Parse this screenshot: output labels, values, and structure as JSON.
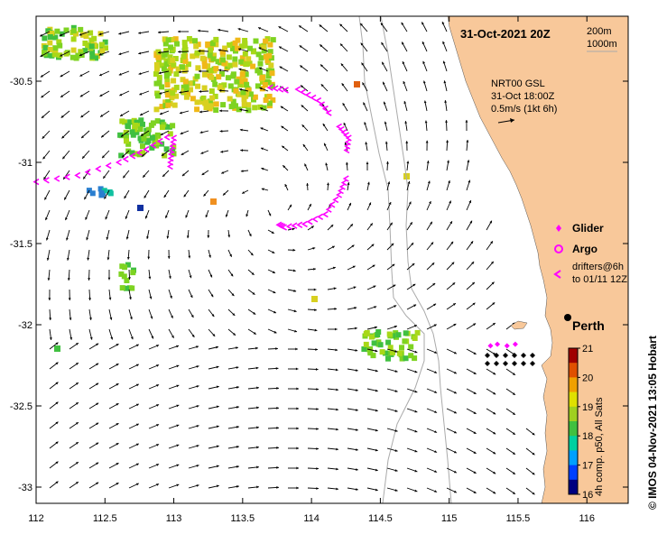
{
  "title": "31-Oct-2021 20Z",
  "contours": [
    "200m",
    "1000m"
  ],
  "current_info": {
    "line1": "NRT00 GSL",
    "line2": "31-Oct 18:00Z",
    "line3": "0.5m/s (1kt 6h)"
  },
  "legend": {
    "glider": "Glider",
    "argo": "Argo",
    "drifters_line1": "drifters@6h",
    "drifters_line2": "to 01/11 12Z"
  },
  "city": "Perth",
  "colorbar": {
    "label": "4h comp. p50, All Sats",
    "ticks": [
      "21",
      "20",
      "19",
      "18",
      "17",
      "16"
    ]
  },
  "credit": "© IMOS 04-Nov-2021 13:05 Hobart",
  "colors": {
    "land": "#f8c89a",
    "drifter": "#ff00ff",
    "arrow": "#000000",
    "contour": "#aaaaaa"
  },
  "axes": {
    "x_ticks": [
      "112",
      "112.5",
      "113",
      "113.5",
      "114",
      "114.5",
      "115",
      "115.5",
      "116"
    ],
    "y_ticks": [
      "-30.5",
      "-31",
      "-31.5",
      "-32",
      "-32.5",
      "-33"
    ]
  },
  "chart_data": {
    "type": "map",
    "lon_range": [
      112,
      116.3
    ],
    "lat_range": [
      -33.1,
      -30.1
    ],
    "sst_range": [
      16,
      21
    ],
    "perth": [
      115.86,
      -31.95
    ],
    "drifter_tracks": [
      [
        [
          112.0,
          -31.12
        ],
        [
          112.3,
          -31.08
        ],
        [
          112.6,
          -31.0
        ],
        [
          112.8,
          -30.92
        ],
        [
          113.0,
          -30.82
        ]
      ],
      [
        [
          113.0,
          -30.85
        ],
        [
          112.98,
          -30.95
        ],
        [
          112.97,
          -31.05
        ]
      ],
      [
        [
          113.7,
          -30.54
        ],
        [
          113.85,
          -30.56
        ]
      ],
      [
        [
          113.9,
          -30.55
        ],
        [
          114.05,
          -30.62
        ],
        [
          114.15,
          -30.72
        ]
      ],
      [
        [
          114.2,
          -30.78
        ],
        [
          114.27,
          -30.85
        ],
        [
          114.25,
          -30.95
        ]
      ],
      [
        [
          114.25,
          -31.1
        ],
        [
          114.2,
          -31.2
        ],
        [
          114.1,
          -31.32
        ],
        [
          113.95,
          -31.38
        ],
        [
          113.8,
          -31.4
        ],
        [
          113.75,
          -31.38
        ]
      ]
    ],
    "gliders": [
      [
        115.3,
        -32.13
      ],
      [
        115.35,
        -32.12
      ],
      [
        115.42,
        -32.13
      ],
      [
        115.48,
        -32.12
      ]
    ]
  }
}
